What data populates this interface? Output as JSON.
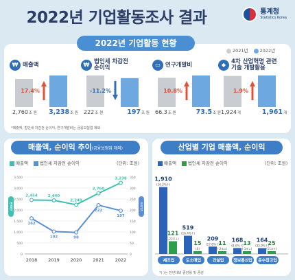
{
  "title": "2022년 기업활동조사 결과",
  "logo": {
    "name": "통계청",
    "sub": "Statistics Korea"
  },
  "section_top": {
    "title": "2022년 기업활동 현황",
    "legend_2021": "2021년",
    "legend_2022": "2022년",
    "kpis": [
      {
        "label": "매출액",
        "icon": "coin-icon",
        "v2021": "2,760",
        "v2022": "3,238",
        "unit": "조 원",
        "change": "17.4%",
        "dir": "up"
      },
      {
        "label": "법인세 차감전\n순이익",
        "icon": "coin-icon",
        "v2021": "222",
        "v2022": "197",
        "unit": "조 원",
        "change": "-11.2%",
        "dir": "down"
      },
      {
        "label": "연구개발비",
        "icon": "monitor-icon",
        "v2021": "66.3",
        "v2022": "73.5",
        "unit": "조 원",
        "change": "10.8%",
        "dir": "up"
      },
      {
        "label": "4차 산업혁명 관련\n기술 개발활용",
        "icon": "chip-icon",
        "v2021": "1,924",
        "v2022": "1,961",
        "unit": "개",
        "change": "1.9%",
        "dir": "up"
      }
    ],
    "footnote": "*매출액, 법인세 차감전 순이익, 연구개발비는 금융보험업 제외"
  },
  "section_left": {
    "title": "매출액, 순이익 추이",
    "title_note": "(금융보험업 제외)",
    "legend_sales": "매출액",
    "legend_profit": "법인세 차감전 순이익",
    "units": "(단위: 조원)",
    "left_axis_label": "매출액",
    "right_axis_label": "순이익"
  },
  "section_right": {
    "title": "산업별 기업 매출액, 순이익",
    "legend_sales": "매출액",
    "legend_profit": "법인세 차감전 순이익",
    "units": "(단위: 조원)",
    "footnote": "*( )는 전년대비 증감률 및 증감"
  },
  "chart_data": [
    {
      "type": "line",
      "title": "매출액, 순이익 추이",
      "x": [
        "2018",
        "2019",
        "2020",
        "2021",
        "2022"
      ],
      "series": [
        {
          "name": "매출액",
          "values": [
            2454,
            2440,
            2240,
            2760,
            3238
          ],
          "labels": [
            "2,454",
            "2,440",
            "2,240",
            "2,760",
            "3,238"
          ],
          "axis": "left",
          "color": "#3ec1b1"
        },
        {
          "name": "법인세 차감전 순이익",
          "values": [
            162,
            102,
            98,
            222,
            197
          ],
          "labels": [
            "162",
            "102",
            "98",
            "222",
            "197"
          ],
          "axis": "right",
          "color": "#5b8fd4"
        }
      ],
      "ylim_left": [
        0,
        3500
      ],
      "yticks_left": [
        0,
        500,
        1000,
        1500,
        2000,
        2500,
        3000,
        3500
      ],
      "ylim_right": [
        0,
        350
      ],
      "yticks_right": [
        0,
        50,
        100,
        150,
        200,
        250,
        300,
        350
      ]
    },
    {
      "type": "bar",
      "title": "산업별 기업 매출액, 순이익",
      "categories": [
        "제조업",
        "도소매업",
        "건설업",
        "정보통신업",
        "운수창고업"
      ],
      "series": [
        {
          "name": "매출액",
          "values": [
            1910,
            519,
            209,
            168,
            164
          ],
          "labels": [
            "1,910",
            "519",
            "209",
            "168",
            "164"
          ],
          "changes": [
            "(16.2%↑)",
            "(16.4%↑)",
            "(17.8%↑)",
            "(8.0%↑)",
            "(32.9%↑)"
          ],
          "color": "#2a63b8"
        },
        {
          "name": "법인세 차감전 순이익",
          "values": [
            121,
            15,
            11,
            13,
            25
          ],
          "labels": [
            "121",
            "15",
            "11",
            "13",
            "25"
          ],
          "changes": [
            "(-22조↓)",
            "(0)",
            "(-2조↓)",
            "(-1조↓)",
            "(11조↑)"
          ],
          "color": "#2e9e4a"
        }
      ]
    }
  ],
  "colors": {
    "accent": "#4a8fd4",
    "bar_2021": "#c9ccd1",
    "bar_2022": "#6ea8e0",
    "up": "#e0513a",
    "down": "#2f6fb8"
  }
}
